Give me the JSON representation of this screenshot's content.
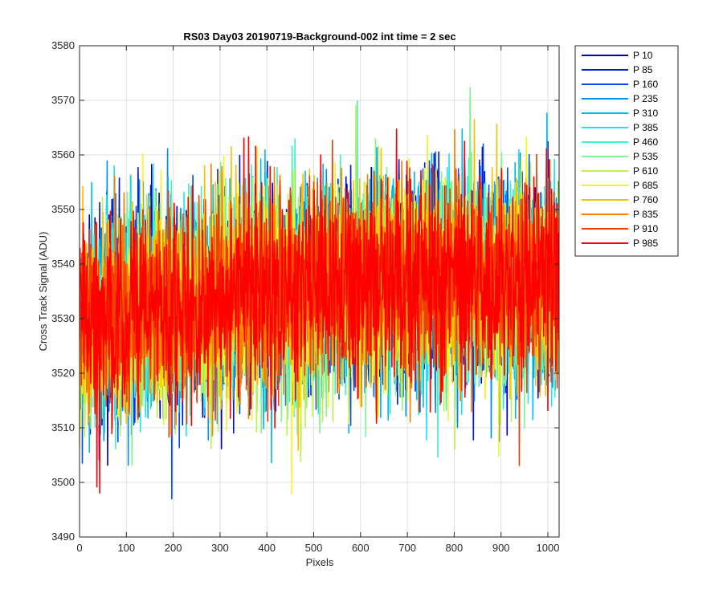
{
  "chart_data": {
    "type": "line",
    "title": "RS03 Day03 20190719-Background-002 int time = 2 sec",
    "xlabel": "Pixels",
    "ylabel": "Cross Track Signal (ADU)",
    "xlim": [
      0,
      1024
    ],
    "ylim": [
      3490,
      3580
    ],
    "xticks": [
      0,
      100,
      200,
      300,
      400,
      500,
      600,
      700,
      800,
      900,
      1000
    ],
    "yticks": [
      3490,
      3500,
      3510,
      3520,
      3530,
      3540,
      3550,
      3560,
      3570,
      3580
    ],
    "grid": true,
    "legend_position": "outside-top-right",
    "noise_model": {
      "mean_start": 3529,
      "mean_end": 3537,
      "std": 9,
      "points_per_series": 1024,
      "observed_min": 3497,
      "observed_max": 3574
    },
    "series": [
      {
        "name": "P 10",
        "color": "#0000b4"
      },
      {
        "name": "P 85",
        "color": "#0018dc"
      },
      {
        "name": "P 160",
        "color": "#0050f0"
      },
      {
        "name": "P 235",
        "color": "#0090e8"
      },
      {
        "name": "P 310",
        "color": "#00bce8"
      },
      {
        "name": "P 385",
        "color": "#19e6f0"
      },
      {
        "name": "P 460",
        "color": "#40f0c8"
      },
      {
        "name": "P 535",
        "color": "#80f490"
      },
      {
        "name": "P 610",
        "color": "#c0f050"
      },
      {
        "name": "P 685",
        "color": "#f4f420"
      },
      {
        "name": "P 760",
        "color": "#f8c000"
      },
      {
        "name": "P 835",
        "color": "#f88000"
      },
      {
        "name": "P 910",
        "color": "#f04000"
      },
      {
        "name": "P 985",
        "color": "#ff0000"
      }
    ]
  }
}
